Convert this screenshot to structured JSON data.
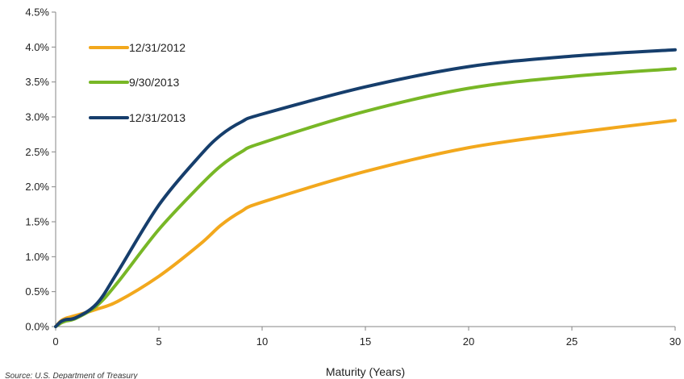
{
  "chart_data": {
    "type": "line",
    "title": "",
    "xlabel": "Maturity (Years)",
    "ylabel": "",
    "xlim": [
      0,
      30
    ],
    "ylim": [
      0,
      4.5
    ],
    "x_ticks": [
      0,
      5,
      10,
      15,
      20,
      25,
      30
    ],
    "x_tick_labels": [
      "0",
      "5",
      "10",
      "15",
      "20",
      "25",
      "30"
    ],
    "y_ticks": [
      0,
      0.5,
      1.0,
      1.5,
      2.0,
      2.5,
      3.0,
      3.5,
      4.0,
      4.5
    ],
    "y_tick_labels": [
      "0.0%",
      "0.5%",
      "1.0%",
      "1.5%",
      "2.0%",
      "2.5%",
      "3.0%",
      "3.5%",
      "4.0%",
      "4.5%"
    ],
    "grid": false,
    "legend_position": "top-left",
    "source": "Source: U.S. Department of Treasury",
    "series": [
      {
        "name": "12/31/2012",
        "color": "#f2a81d",
        "x": [
          0,
          0.25,
          0.5,
          1,
          2,
          3,
          5,
          7,
          8,
          9,
          10,
          15,
          20,
          25,
          30
        ],
        "y": [
          0.0,
          0.08,
          0.12,
          0.16,
          0.25,
          0.36,
          0.72,
          1.18,
          1.45,
          1.65,
          1.78,
          2.22,
          2.56,
          2.77,
          2.95
        ]
      },
      {
        "name": "9/30/2013",
        "color": "#78b726",
        "x": [
          0,
          0.25,
          0.5,
          1,
          2,
          3,
          5,
          7,
          8,
          9,
          10,
          15,
          20,
          25,
          30
        ],
        "y": [
          0.0,
          0.05,
          0.08,
          0.12,
          0.3,
          0.63,
          1.39,
          2.02,
          2.3,
          2.5,
          2.63,
          3.08,
          3.41,
          3.58,
          3.69
        ]
      },
      {
        "name": "12/31/2013",
        "color": "#163e6c",
        "x": [
          0,
          0.25,
          0.5,
          1,
          2,
          3,
          5,
          7,
          8,
          9,
          10,
          15,
          20,
          25,
          30
        ],
        "y": [
          0.0,
          0.07,
          0.1,
          0.13,
          0.33,
          0.78,
          1.74,
          2.45,
          2.74,
          2.93,
          3.04,
          3.43,
          3.72,
          3.87,
          3.96
        ]
      }
    ]
  }
}
